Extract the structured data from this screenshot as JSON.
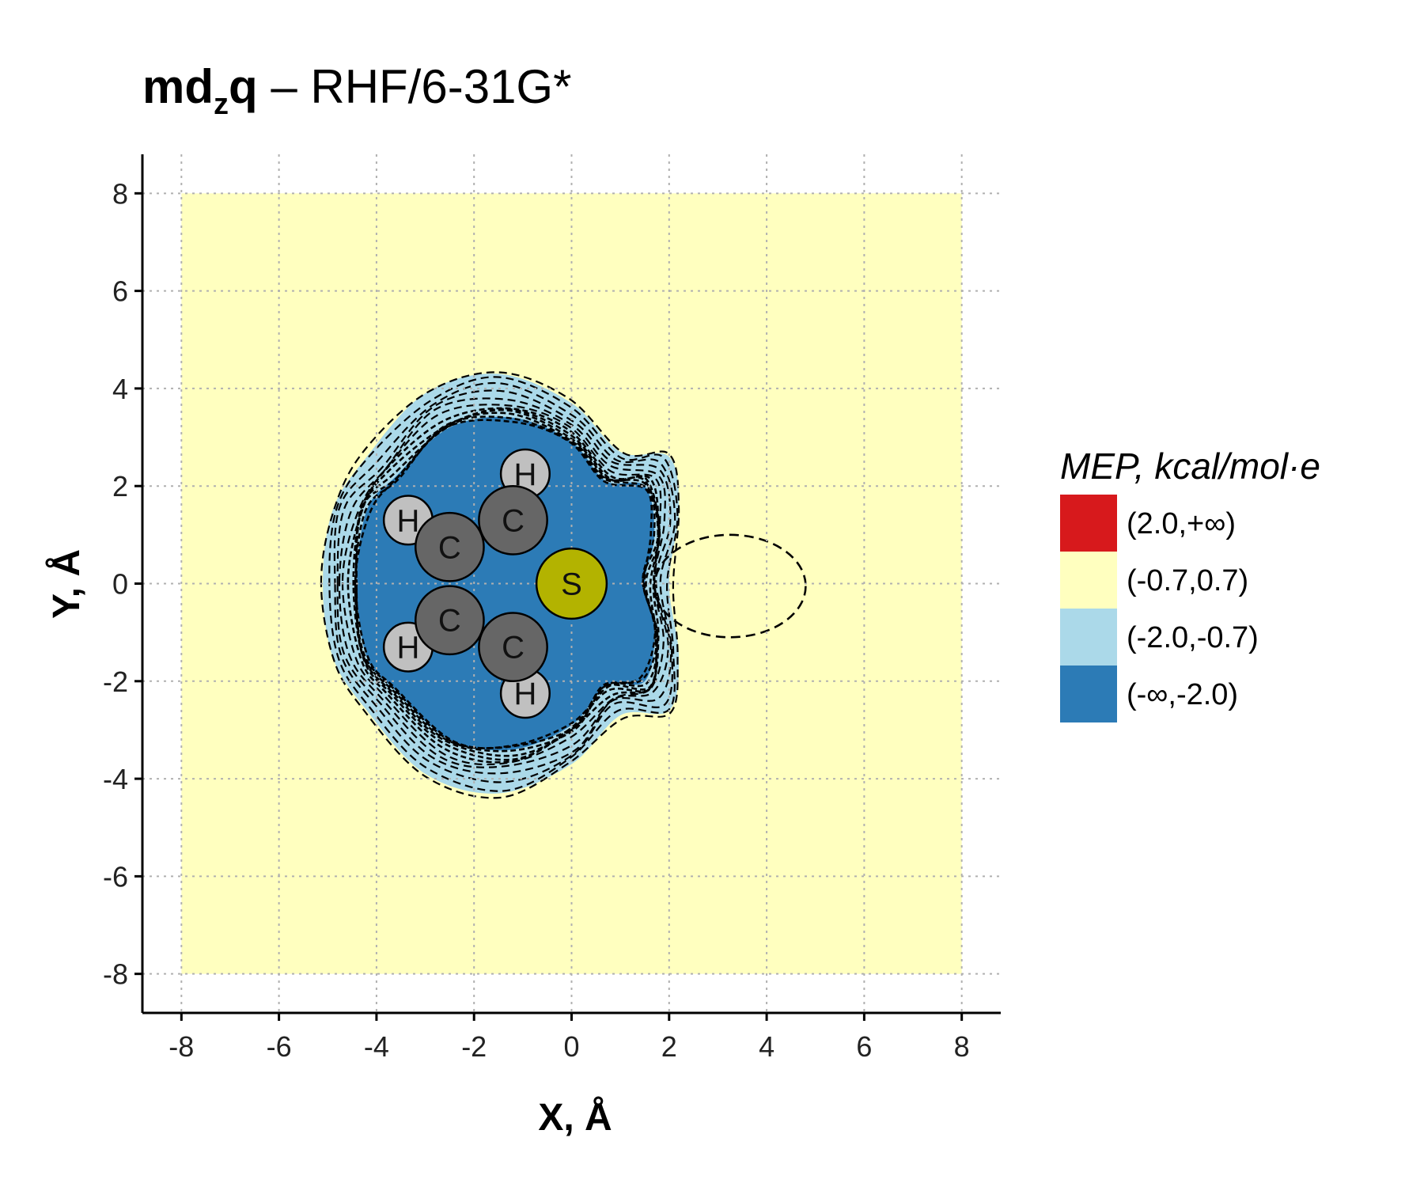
{
  "chart_data": {
    "type": "heatmap",
    "title": {
      "main": "md",
      "sub": "z",
      "main2": "q",
      "rest": " – RHF/6-31G*"
    },
    "xlabel": "X, Å",
    "ylabel": "Y, Å",
    "xlim": [
      -8.8,
      8.8
    ],
    "ylim": [
      -8.8,
      8.8
    ],
    "field_extent": {
      "x": [
        -8,
        8
      ],
      "y": [
        -8,
        8
      ]
    },
    "xticks": [
      -8,
      -6,
      -4,
      -2,
      0,
      2,
      4,
      6,
      8
    ],
    "yticks": [
      -8,
      -6,
      -4,
      -2,
      0,
      2,
      4,
      6,
      8
    ],
    "grid": true,
    "legend": {
      "title": "MEP, kcal/mol·e",
      "position": "right",
      "items": [
        {
          "label": "(2.0,+∞)",
          "color": "#d7191c"
        },
        {
          "label": "(-0.7,0.7)",
          "color": "#ffffbf"
        },
        {
          "label": "(-2.0,-0.7)",
          "color": "#abd9e9"
        },
        {
          "label": "(-∞,-2.0)",
          "color": "#2c7bb6"
        }
      ]
    },
    "atoms": [
      {
        "element": "S",
        "x": 0.0,
        "y": 0.0,
        "color": "#b3b300"
      },
      {
        "element": "C",
        "x": -1.2,
        "y": 1.3,
        "color": "#666666"
      },
      {
        "element": "C",
        "x": -2.5,
        "y": 0.75,
        "color": "#666666"
      },
      {
        "element": "C",
        "x": -2.5,
        "y": -0.75,
        "color": "#666666"
      },
      {
        "element": "C",
        "x": -1.2,
        "y": -1.3,
        "color": "#666666"
      },
      {
        "element": "H",
        "x": -0.95,
        "y": 2.25,
        "color": "#c0c0c0"
      },
      {
        "element": "H",
        "x": -3.35,
        "y": 1.3,
        "color": "#c0c0c0"
      },
      {
        "element": "H",
        "x": -3.35,
        "y": -1.3,
        "color": "#c0c0c0"
      },
      {
        "element": "H",
        "x": -0.95,
        "y": -2.25,
        "color": "#c0c0c0"
      }
    ],
    "regions": [
      {
        "level": "(-2.0,-0.7)",
        "color": "#abd9e9",
        "outline": [
          [
            -5.1,
            0
          ],
          [
            -4.9,
            1.5
          ],
          [
            -4.2,
            2.6
          ],
          [
            -3.0,
            3.9
          ],
          [
            -1.5,
            4.3
          ],
          [
            0.0,
            3.7
          ],
          [
            1.0,
            2.7
          ],
          [
            2.0,
            2.6
          ],
          [
            2.2,
            1.5
          ],
          [
            2.0,
            0
          ],
          [
            2.2,
            -1.5
          ],
          [
            2.0,
            -2.6
          ],
          [
            1.0,
            -2.7
          ],
          [
            0.0,
            -3.7
          ],
          [
            -1.5,
            -4.3
          ],
          [
            -3.0,
            -3.9
          ],
          [
            -4.2,
            -2.6
          ],
          [
            -4.9,
            -1.5
          ]
        ]
      },
      {
        "level": "(-∞,-2.0)",
        "color": "#2c7bb6",
        "outline": [
          [
            -4.4,
            0
          ],
          [
            -4.2,
            1.5
          ],
          [
            -3.6,
            2.2
          ],
          [
            -2.5,
            3.2
          ],
          [
            -1.2,
            3.4
          ],
          [
            0.0,
            2.9
          ],
          [
            0.7,
            2.1
          ],
          [
            1.5,
            2.0
          ],
          [
            1.7,
            1.0
          ],
          [
            1.5,
            0
          ],
          [
            1.7,
            -1.0
          ],
          [
            1.5,
            -2.0
          ],
          [
            0.7,
            -2.1
          ],
          [
            0.0,
            -2.9
          ],
          [
            -1.2,
            -3.4
          ],
          [
            -2.5,
            -3.2
          ],
          [
            -3.6,
            -2.2
          ],
          [
            -4.2,
            -1.5
          ]
        ]
      }
    ],
    "dashed_loop": {
      "cx": 3.25,
      "cy": -0.05,
      "rx": 1.55,
      "ry": 1.05
    }
  }
}
